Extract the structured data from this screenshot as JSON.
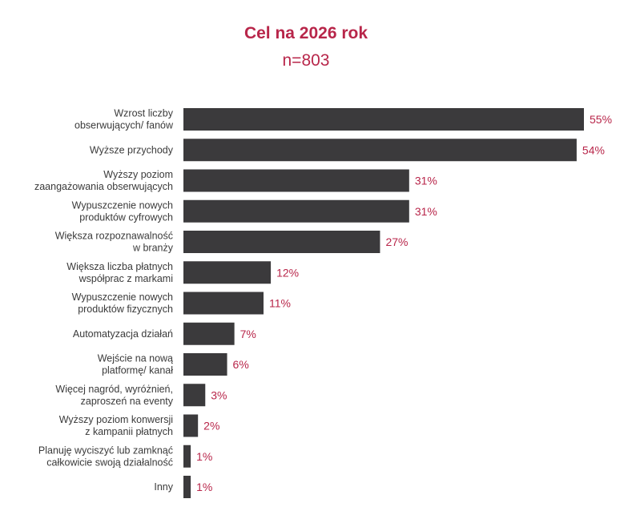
{
  "chart_data": {
    "type": "bar",
    "orientation": "horizontal",
    "title": "Cel na 2026 rok",
    "subtitle": "n=803",
    "xlabel": "",
    "ylabel": "",
    "xlim": [
      0,
      55
    ],
    "grid": false,
    "legend": "none",
    "value_suffix": "%",
    "categories": [
      [
        "Wzrost liczby",
        "obserwujących/ fanów"
      ],
      [
        "Wyższe przychody"
      ],
      [
        "Wyższy poziom",
        "zaangażowania obserwujących"
      ],
      [
        "Wypuszczenie nowych",
        "produktów cyfrowych"
      ],
      [
        "Większa rozpoznawalność",
        "w branży"
      ],
      [
        "Większa liczba płatnych",
        "współprac z markami"
      ],
      [
        "Wypuszczenie nowych",
        "produktów fizycznych"
      ],
      [
        "Automatyzacja działań"
      ],
      [
        "Wejście na nową",
        "platformę/ kanał"
      ],
      [
        "Więcej nagród, wyróżnień,",
        "zaproszeń na eventy"
      ],
      [
        "Wyższy poziom konwersji",
        "z kampanii płatnych"
      ],
      [
        "Planuję wyciszyć lub zamknąć",
        "całkowicie swoją działalność"
      ],
      [
        "Inny"
      ]
    ],
    "values": [
      55,
      54,
      31,
      31,
      27,
      12,
      11,
      7,
      6,
      3,
      2,
      1,
      1
    ],
    "colors": {
      "bar": "#3b3a3c",
      "value_label": "#b8264a",
      "title": "#b8264a",
      "category_label": "#3a3a3a"
    }
  }
}
